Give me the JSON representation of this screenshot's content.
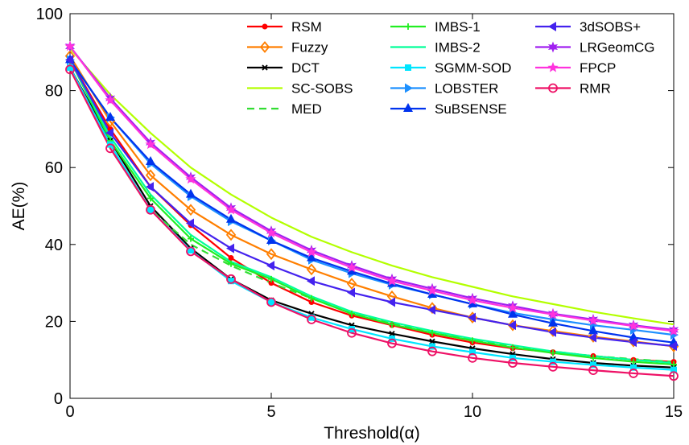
{
  "chart_data": {
    "type": "line",
    "title": "",
    "xlabel": "Threshold(α)",
    "ylabel": "AE(%)",
    "xlim": [
      0,
      15
    ],
    "ylim": [
      0,
      100
    ],
    "xticks": [
      0,
      5,
      10,
      15
    ],
    "yticks": [
      0,
      20,
      40,
      60,
      80,
      100
    ],
    "grid": false,
    "legend_placement": "top-right",
    "x": [
      0,
      1,
      2,
      3,
      4,
      5,
      6,
      7,
      8,
      9,
      10,
      11,
      12,
      13,
      14,
      15
    ],
    "series": [
      {
        "name": "RSM",
        "color": "#ff0000",
        "marker": "dot",
        "dash": "solid",
        "values": [
          88,
          70,
          55,
          45,
          36.5,
          30,
          25,
          21.5,
          19,
          16.5,
          14.5,
          13,
          12,
          11,
          10,
          9.5
        ]
      },
      {
        "name": "Fuzzy",
        "color": "#ff7f00",
        "marker": "diamond",
        "dash": "solid",
        "values": [
          89,
          72,
          58,
          49,
          42.5,
          37.5,
          33.5,
          29.8,
          26.5,
          23.5,
          21,
          19,
          17.5,
          16,
          14.8,
          13.5
        ]
      },
      {
        "name": "DCT",
        "color": "#000000",
        "marker": "x",
        "dash": "solid",
        "values": [
          86,
          67,
          50,
          39,
          31,
          25.5,
          22,
          19,
          16.8,
          14.8,
          13,
          11.5,
          10.2,
          9.2,
          8.5,
          8
        ]
      },
      {
        "name": "SC-SOBS",
        "color": "#b3ff00",
        "marker": "none",
        "dash": "solid",
        "values": [
          91,
          79,
          69,
          60,
          53,
          47,
          42,
          38,
          34.5,
          31.5,
          29,
          26.5,
          24.5,
          22.5,
          20.8,
          19.2
        ]
      },
      {
        "name": "MED",
        "color": "#33dd33",
        "marker": "none",
        "dash": "dashed",
        "values": [
          86,
          65,
          49,
          40,
          34.5,
          30,
          26,
          22,
          19.5,
          17,
          15.2,
          13.5,
          12.2,
          11,
          10.2,
          9.5
        ]
      },
      {
        "name": "IMBS-1",
        "color": "#22ee22",
        "marker": "plus",
        "dash": "solid",
        "values": [
          88,
          67,
          52,
          41.5,
          35,
          31,
          26,
          22,
          19.2,
          17,
          15,
          13.2,
          11.8,
          10.5,
          9.5,
          8.8
        ]
      },
      {
        "name": "IMBS-2",
        "color": "#00ff99",
        "marker": "none",
        "dash": "solid",
        "values": [
          88,
          68,
          53,
          42.5,
          35.5,
          31.5,
          26.5,
          22.5,
          19.8,
          17.5,
          15.5,
          13.8,
          12.2,
          11,
          10,
          9.2
        ]
      },
      {
        "name": "SGMM-SOD",
        "color": "#00e5ff",
        "marker": "square",
        "dash": "solid",
        "values": [
          86,
          66,
          49,
          38.5,
          30.5,
          25,
          21,
          18,
          15.5,
          13.5,
          12,
          10.5,
          9.5,
          8.7,
          8,
          7.4
        ]
      },
      {
        "name": "LOBSTER",
        "color": "#1e90ff",
        "marker": "triangle-right",
        "dash": "solid",
        "values": [
          88,
          73,
          61,
          52.5,
          46,
          41,
          36,
          32.5,
          29.5,
          27,
          24.5,
          22.2,
          20.5,
          19,
          17.8,
          16.5
        ]
      },
      {
        "name": "SuBSENSE",
        "color": "#0033ee",
        "marker": "triangle-up",
        "dash": "solid",
        "values": [
          88,
          73,
          61.5,
          53,
          46.5,
          41,
          36.5,
          33,
          29.8,
          27,
          24.5,
          21.8,
          19.5,
          17.5,
          15.8,
          14.5
        ]
      },
      {
        "name": "3dSOBS+",
        "color": "#4422ee",
        "marker": "triangle-left",
        "dash": "solid",
        "values": [
          88,
          69,
          55,
          45.5,
          39,
          34.5,
          30.5,
          27.5,
          25,
          23,
          21,
          19,
          17.2,
          15.8,
          14.6,
          13.6
        ]
      },
      {
        "name": "LRGeomCG",
        "color": "#a020f0",
        "marker": "star6",
        "dash": "solid",
        "values": [
          91.5,
          78,
          66.5,
          57.5,
          49.5,
          43.5,
          38.5,
          34.5,
          31,
          28.5,
          26,
          24,
          22,
          20.5,
          19,
          17.8
        ]
      },
      {
        "name": "FPCP",
        "color": "#ff33dd",
        "marker": "star5",
        "dash": "solid",
        "values": [
          91.5,
          77.5,
          66,
          57,
          49,
          43,
          38,
          34,
          30.5,
          28,
          25.5,
          23.5,
          21.8,
          20.2,
          18.8,
          17.5
        ]
      },
      {
        "name": "RMR",
        "color": "#ee1166",
        "marker": "circle",
        "dash": "solid",
        "values": [
          85.5,
          65,
          49,
          38.2,
          31,
          25,
          20.5,
          17,
          14.3,
          12.2,
          10.5,
          9.2,
          8.2,
          7.3,
          6.5,
          5.8
        ]
      }
    ]
  }
}
